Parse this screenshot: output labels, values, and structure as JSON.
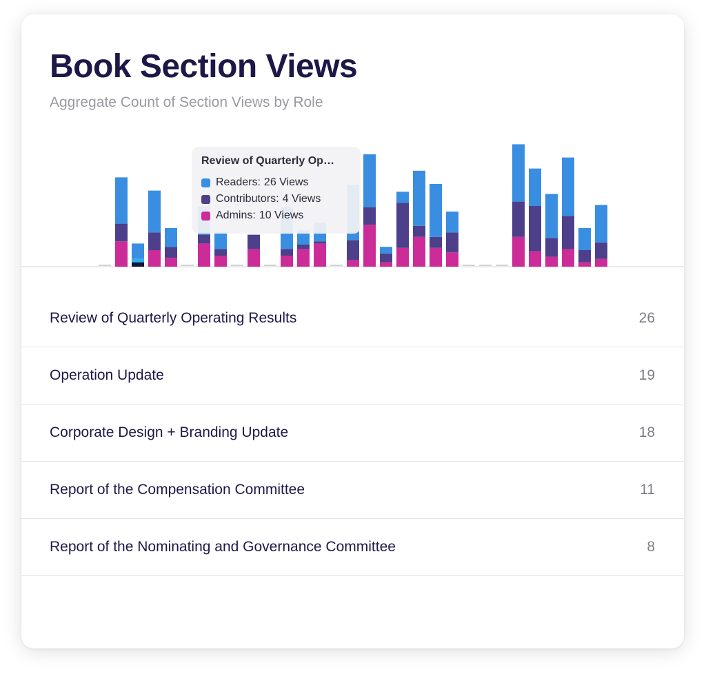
{
  "header": {
    "title": "Book Section Views",
    "subtitle": "Aggregate Count of Section Views by Role"
  },
  "colors": {
    "readers": "#3a8ee2",
    "contributors": "#4d3f8a",
    "admins": "#cb2c98",
    "placeholder": "#d2d2d8",
    "baseline": "#e4e4e8",
    "highlight_top": "#2fb0ee",
    "highlight_bottom": "#101838"
  },
  "tooltip": {
    "title": "Review of Quarterly Op…",
    "rows": [
      {
        "label": "Readers:",
        "value": "26 Views",
        "color": "#3a8ee2"
      },
      {
        "label": "Contributors:",
        "value": "4 Views",
        "color": "#4d3f8a"
      },
      {
        "label": "Admins:",
        "value": "10 Views",
        "color": "#cb2c98"
      }
    ]
  },
  "chart_data": {
    "type": "bar",
    "stacked": true,
    "series_order": [
      "admins",
      "contributors",
      "readers"
    ],
    "bars": [
      {
        "a": 0,
        "c": 0,
        "r": 0,
        "empty": true
      },
      {
        "a": 23,
        "c": 16,
        "r": 42
      },
      {
        "a": 4,
        "c": 3,
        "r": 14,
        "highlight": true
      },
      {
        "a": 15,
        "c": 16,
        "r": 38
      },
      {
        "a": 8,
        "c": 10,
        "r": 17
      },
      {
        "a": 0,
        "c": 0,
        "r": 0,
        "empty": true
      },
      {
        "a": 21,
        "c": 8,
        "r": 26
      },
      {
        "a": 10,
        "c": 6,
        "r": 15
      },
      {
        "a": 0,
        "c": 0,
        "r": 0,
        "empty": true
      },
      {
        "a": 16,
        "c": 13,
        "r": 0
      },
      {
        "a": 0,
        "c": 0,
        "r": 0,
        "empty": true
      },
      {
        "a": 10,
        "c": 6,
        "r": 38
      },
      {
        "a": 16,
        "c": 4,
        "r": 13
      },
      {
        "a": 21,
        "c": 2,
        "r": 17
      },
      {
        "a": 0,
        "c": 0,
        "r": 0,
        "empty": true
      },
      {
        "a": 6,
        "c": 18,
        "r": 50
      },
      {
        "a": 38,
        "c": 16,
        "r": 48
      },
      {
        "a": 4,
        "c": 8,
        "r": 6
      },
      {
        "a": 17,
        "c": 41,
        "r": 10
      },
      {
        "a": 27,
        "c": 10,
        "r": 50
      },
      {
        "a": 17,
        "c": 10,
        "r": 48
      },
      {
        "a": 13,
        "c": 18,
        "r": 19
      },
      {
        "a": 0,
        "c": 0,
        "r": 0,
        "empty": true
      },
      {
        "a": 0,
        "c": 0,
        "r": 0,
        "empty": true
      },
      {
        "a": 0,
        "c": 0,
        "r": 0,
        "empty": true
      },
      {
        "a": 27,
        "c": 32,
        "r": 52
      },
      {
        "a": 14,
        "c": 41,
        "r": 34
      },
      {
        "a": 9,
        "c": 17,
        "r": 40
      },
      {
        "a": 16,
        "c": 30,
        "r": 53
      },
      {
        "a": 4,
        "c": 11,
        "r": 20
      },
      {
        "a": 7,
        "c": 15,
        "r": 34
      }
    ]
  },
  "sections": [
    {
      "label": "Review of Quarterly Operating Results",
      "count": "26"
    },
    {
      "label": "Operation Update",
      "count": "19"
    },
    {
      "label": "Corporate Design + Branding Update",
      "count": "18"
    },
    {
      "label": "Report of the Compensation Committee",
      "count": "11"
    },
    {
      "label": "Report of the Nominating and Governance Committee",
      "count": "8"
    }
  ]
}
